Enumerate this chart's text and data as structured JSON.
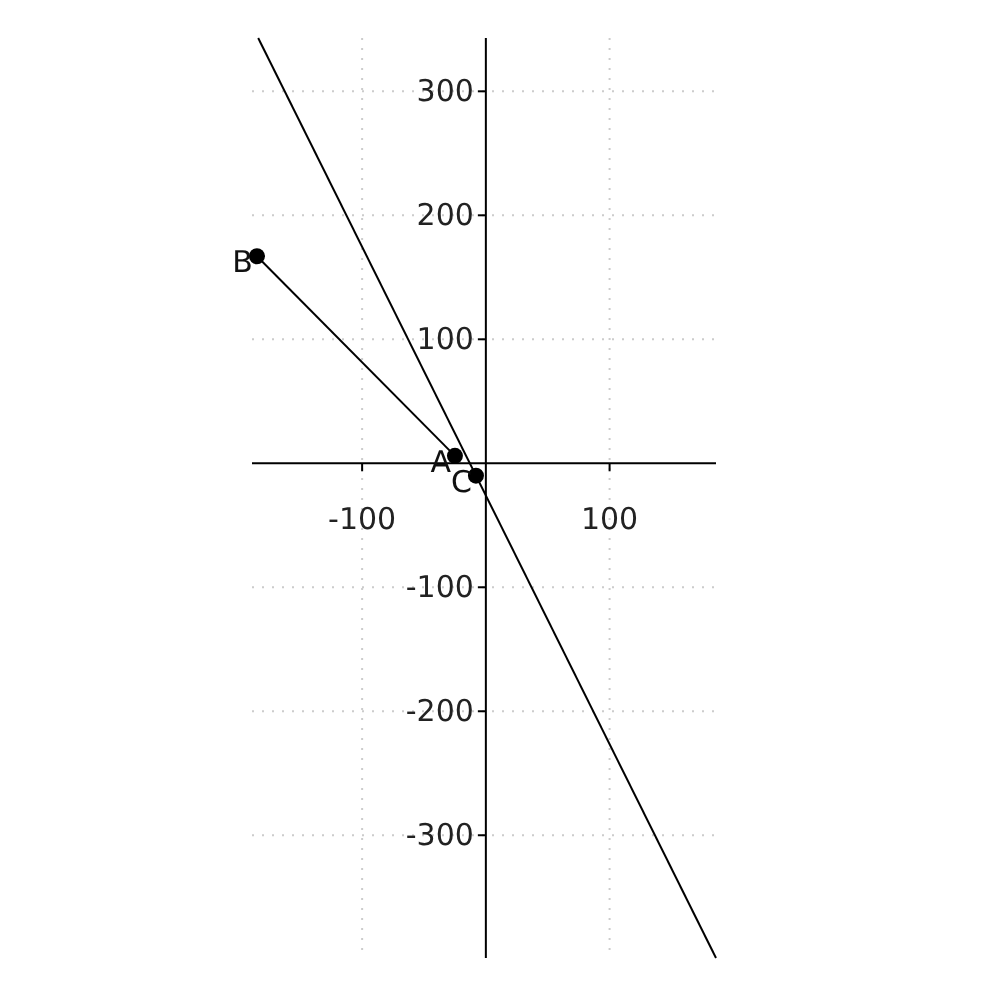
{
  "chart_data": {
    "type": "line",
    "xlim": [
      -189,
      186
    ],
    "ylim": [
      -399,
      343
    ],
    "xticks": [
      -100,
      100
    ],
    "yticks": [
      -300,
      -200,
      -100,
      100,
      200,
      300
    ],
    "grid": true,
    "marker": "none",
    "series": [
      {
        "color": "#000000",
        "x": [
          -184,
          186
        ],
        "values": [
          343,
          -399
        ]
      },
      {
        "color": "#000000",
        "x": [
          -185,
          -25
        ],
        "values": [
          167,
          6
        ]
      },
      {
        "type": "scatter",
        "color": "#000000",
        "marker": "circle",
        "x": [
          -25,
          -185,
          -8
        ],
        "values": [
          6,
          167,
          -10
        ]
      }
    ],
    "annotations": [
      {
        "text": "A",
        "x": -25,
        "y": 6
      },
      {
        "text": "B",
        "x": -185,
        "y": 167
      },
      {
        "text": "C",
        "x": -8,
        "y": -10
      }
    ]
  }
}
